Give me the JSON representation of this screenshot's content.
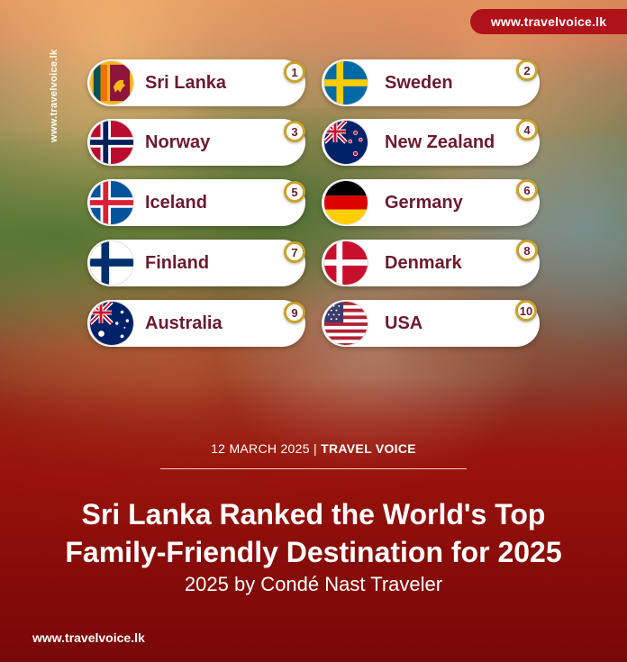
{
  "site_url": "www.travelvoice.lk",
  "side_url": "www.travelvoice.lk",
  "footer_url": "www.travelvoice.lk",
  "rankings": [
    {
      "rank": "1",
      "country": "Sri Lanka"
    },
    {
      "rank": "2",
      "country": "Sweden"
    },
    {
      "rank": "3",
      "country": "Norway"
    },
    {
      "rank": "4",
      "country": "New Zealand"
    },
    {
      "rank": "5",
      "country": "Iceland"
    },
    {
      "rank": "6",
      "country": "Germany"
    },
    {
      "rank": "7",
      "country": "Finland"
    },
    {
      "rank": "8",
      "country": "Denmark"
    },
    {
      "rank": "9",
      "country": "Australia"
    },
    {
      "rank": "10",
      "country": "USA"
    }
  ],
  "dateline": {
    "date": "12 MARCH 2025",
    "separator": "|",
    "source": "TRAVEL VOICE"
  },
  "headline": {
    "line1": "Sri Lanka Ranked the World's Top",
    "line2": "Family-Friendly Destination for 2025"
  },
  "subline": "2025 by Condé Nast Traveler",
  "colors": {
    "badge": "#b0121a",
    "name_text": "#6b1b2e",
    "rank_ring": "#c9a227",
    "bottom_red": "#8a0d0b"
  }
}
